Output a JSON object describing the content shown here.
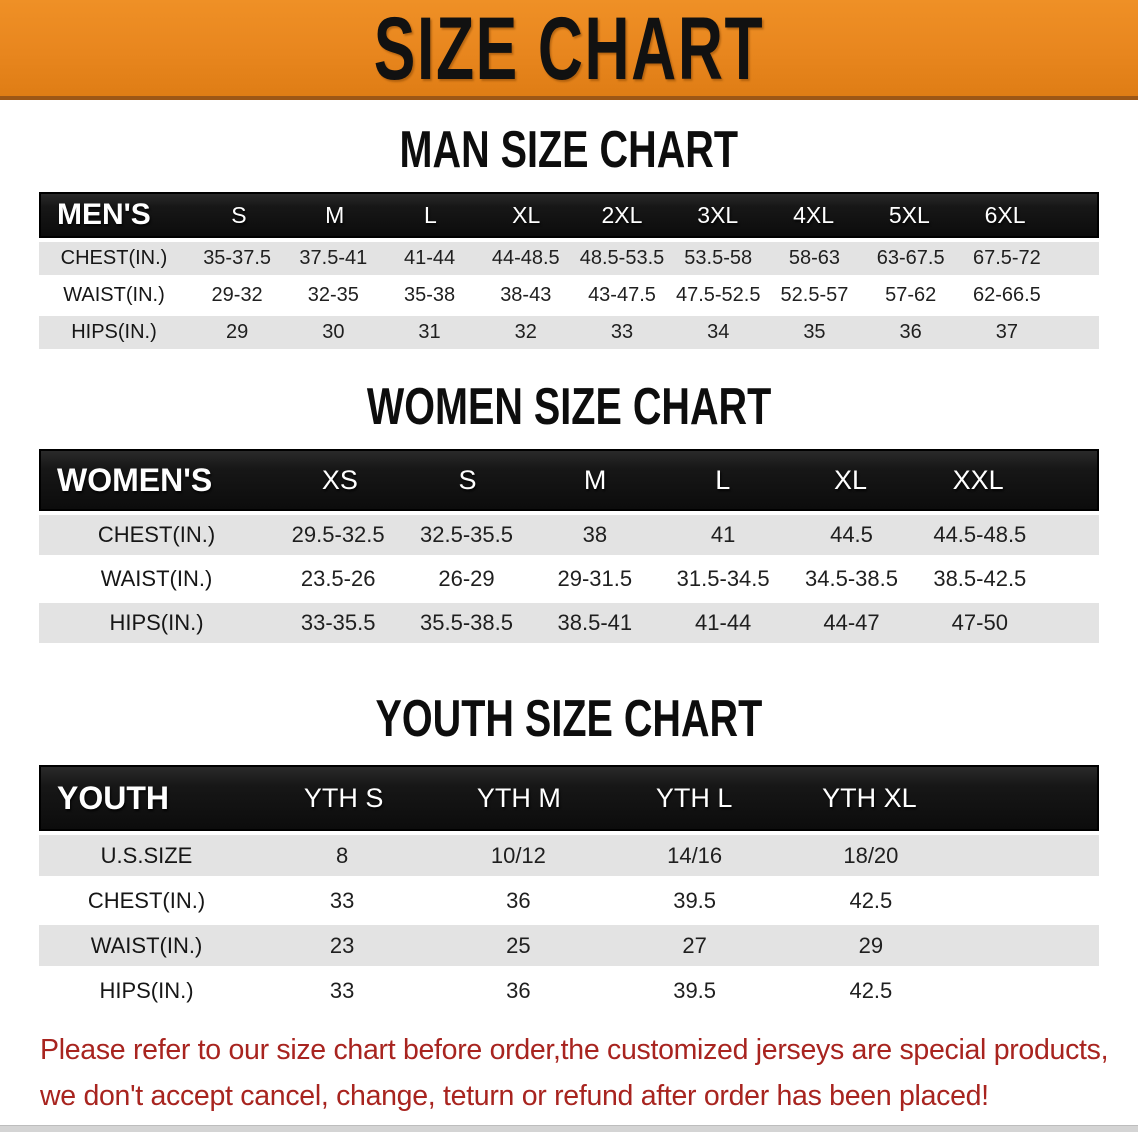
{
  "banner": {
    "title": "SIZE CHART"
  },
  "colors": {
    "banner_orange": "#E8861E",
    "banner_border": "#9D5716",
    "header_bar_black": "#171717",
    "row_gray": "#E3E3E3",
    "footer_red": "#A8241F"
  },
  "sections": [
    {
      "heading": "MAN SIZE CHART",
      "header_label": "MEN'S",
      "columns": [
        "S",
        "M",
        "L",
        "XL",
        "2XL",
        "3XL",
        "4XL",
        "5XL",
        "6XL"
      ],
      "rows": [
        {
          "label": "CHEST(IN.)",
          "values": [
            "35-37.5",
            "37.5-41",
            "41-44",
            "44-48.5",
            "48.5-53.5",
            "53.5-58",
            "58-63",
            "63-67.5",
            "67.5-72"
          ]
        },
        {
          "label": "WAIST(IN.)",
          "values": [
            "29-32",
            "32-35",
            "35-38",
            "38-43",
            "43-47.5",
            "47.5-52.5",
            "52.5-57",
            "57-62",
            "62-66.5"
          ]
        },
        {
          "label": "HIPS(IN.)",
          "values": [
            "29",
            "30",
            "31",
            "32",
            "33",
            "34",
            "35",
            "36",
            "37"
          ]
        }
      ]
    },
    {
      "heading": "WOMEN SIZE CHART",
      "header_label": "WOMEN'S",
      "columns": [
        "XS",
        "S",
        "M",
        "L",
        "XL",
        "XXL"
      ],
      "rows": [
        {
          "label": "CHEST(IN.)",
          "values": [
            "29.5-32.5",
            "32.5-35.5",
            "38",
            "41",
            "44.5",
            "44.5-48.5"
          ]
        },
        {
          "label": "WAIST(IN.)",
          "values": [
            "23.5-26",
            "26-29",
            "29-31.5",
            "31.5-34.5",
            "34.5-38.5",
            "38.5-42.5"
          ]
        },
        {
          "label": "HIPS(IN.)",
          "values": [
            "33-35.5",
            "35.5-38.5",
            "38.5-41",
            "41-44",
            "44-47",
            "47-50"
          ]
        }
      ]
    },
    {
      "heading": "YOUTH SIZE CHART",
      "header_label": "YOUTH",
      "columns": [
        "YTH S",
        "YTH M",
        "YTH L",
        "YTH XL"
      ],
      "rows": [
        {
          "label": "U.S.SIZE",
          "values": [
            "8",
            "10/12",
            "14/16",
            "18/20"
          ]
        },
        {
          "label": "CHEST(IN.)",
          "values": [
            "33",
            "36",
            "39.5",
            "42.5"
          ]
        },
        {
          "label": "WAIST(IN.)",
          "values": [
            "23",
            "25",
            "27",
            "29"
          ]
        },
        {
          "label": "HIPS(IN.)",
          "values": [
            "33",
            "36",
            "39.5",
            "42.5"
          ]
        }
      ]
    }
  ],
  "footer": {
    "line1": "Please refer to our size chart before order,the customized jerseys are special products,",
    "line2": "we don't accept cancel, change, teturn or refund after order has been placed!"
  }
}
